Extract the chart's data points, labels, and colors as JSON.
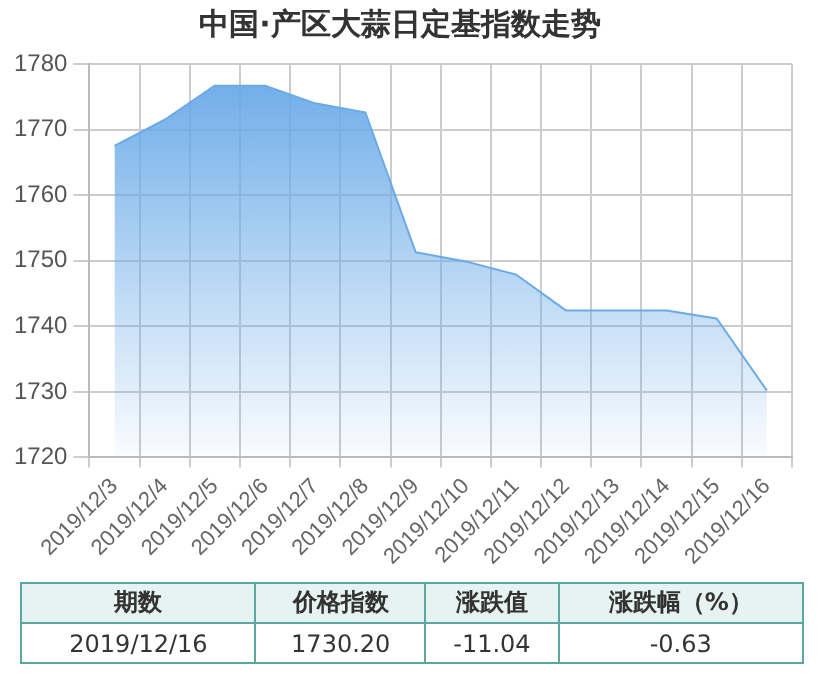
{
  "chart_data": {
    "type": "area",
    "title": "中国·产区大蒜日定基指数走势",
    "categories": [
      "2019/12/3",
      "2019/12/4",
      "2019/12/5",
      "2019/12/6",
      "2019/12/7",
      "2019/12/8",
      "2019/12/9",
      "2019/12/10",
      "2019/12/11",
      "2019/12/12",
      "2019/12/13",
      "2019/12/14",
      "2019/12/15",
      "2019/12/16"
    ],
    "series": [
      {
        "color": "#6aaae8",
        "values": [
          1767.5,
          1771.5,
          1776.7,
          1776.7,
          1774.0,
          1772.6,
          1751.3,
          1749.9,
          1747.9,
          1742.4,
          1742.4,
          1742.4,
          1741.2,
          1730.2
        ]
      }
    ],
    "ylim": [
      1720,
      1780
    ],
    "yticks": [
      1720,
      1730,
      1740,
      1750,
      1760,
      1770,
      1780
    ],
    "grid": true,
    "legend": false,
    "marker": "none",
    "annotations": [
      "期数",
      "价格指数",
      "涨跌值",
      "涨跌幅（%）",
      "2019/12/16",
      "1730.20",
      "-11.04",
      "-0.63"
    ]
  }
}
